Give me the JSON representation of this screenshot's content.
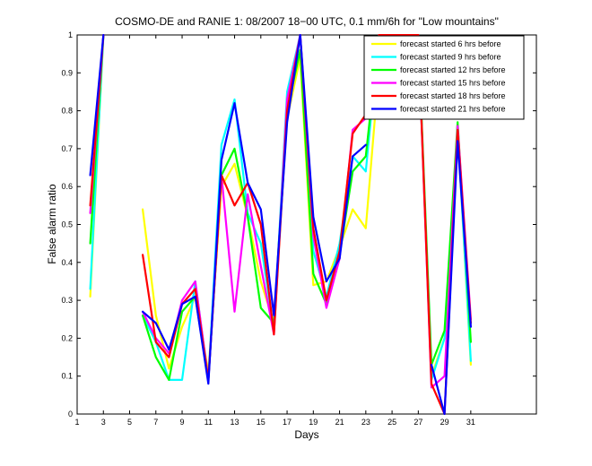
{
  "chart_data": {
    "type": "line",
    "title": "COSMO-DE and RANIE 1: 08/2007 18−00 UTC, 0.1 mm/6h for \"Low mountains\"",
    "xlabel": "Days",
    "ylabel": "False alarm ratio",
    "xlim": [
      1,
      36
    ],
    "ylim": [
      0,
      1
    ],
    "xticks": [
      1,
      3,
      5,
      7,
      9,
      11,
      13,
      15,
      17,
      19,
      21,
      23,
      25,
      27,
      29,
      31
    ],
    "yticks": [
      0,
      0.1,
      0.2,
      0.3,
      0.4,
      0.5,
      0.6,
      0.7,
      0.8,
      0.9,
      1
    ],
    "ytick_labels": [
      "0",
      "0.1",
      "0.2",
      "0.3",
      "0.4",
      "0.5",
      "0.6",
      "0.7",
      "0.8",
      "0.9",
      "1"
    ],
    "grid": false,
    "legend_position": "top-right",
    "x": [
      1,
      2,
      3,
      4,
      5,
      6,
      7,
      8,
      9,
      10,
      11,
      12,
      13,
      14,
      15,
      16,
      17,
      18,
      19,
      20,
      21,
      22,
      23,
      24,
      25,
      26,
      27,
      28,
      29,
      30,
      31
    ],
    "series": [
      {
        "name": "forecast started 6 hrs before",
        "color": "#ffff00",
        "values": [
          null,
          0.31,
          1.0,
          null,
          null,
          0.54,
          0.26,
          0.12,
          0.23,
          0.31,
          0.11,
          0.6,
          0.66,
          0.52,
          0.35,
          0.24,
          0.78,
          0.94,
          0.34,
          0.35,
          0.44,
          0.54,
          0.49,
          0.91,
          1.0,
          1.0,
          1.0,
          0.1,
          0.2,
          0.75,
          0.13
        ]
      },
      {
        "name": "forecast started 9 hrs before",
        "color": "#00ffff",
        "values": [
          null,
          0.33,
          1.0,
          null,
          null,
          0.26,
          0.19,
          0.09,
          0.09,
          0.35,
          0.09,
          0.71,
          0.83,
          0.53,
          0.45,
          0.22,
          0.85,
          1.0,
          0.43,
          0.31,
          0.45,
          0.68,
          0.64,
          1.0,
          1.0,
          1.0,
          1.0,
          0.09,
          0.2,
          0.75,
          0.14
        ]
      },
      {
        "name": "forecast started 12 hrs before",
        "color": "#00ff00",
        "values": [
          null,
          0.45,
          1.0,
          null,
          null,
          0.26,
          0.15,
          0.09,
          0.27,
          0.31,
          0.09,
          0.63,
          0.7,
          0.52,
          0.28,
          0.24,
          0.8,
          0.96,
          0.37,
          0.29,
          0.42,
          0.64,
          0.68,
          1.0,
          1.0,
          1.0,
          1.0,
          0.13,
          0.22,
          0.77,
          0.19
        ]
      },
      {
        "name": "forecast started 15 hrs before",
        "color": "#ff00ff",
        "values": [
          null,
          0.53,
          1.0,
          null,
          null,
          0.27,
          0.2,
          0.16,
          0.3,
          0.35,
          0.09,
          0.63,
          0.27,
          0.58,
          0.39,
          0.21,
          0.83,
          1.0,
          0.47,
          0.28,
          0.41,
          0.75,
          0.78,
          1.0,
          1.0,
          1.0,
          1.0,
          0.07,
          0.1,
          0.76,
          0.25
        ]
      },
      {
        "name": "forecast started 18 hrs before",
        "color": "#ff0000",
        "values": [
          null,
          0.55,
          1.0,
          null,
          null,
          0.42,
          0.19,
          0.15,
          0.29,
          0.33,
          0.09,
          0.63,
          0.55,
          0.61,
          0.5,
          0.21,
          0.8,
          1.0,
          0.49,
          0.3,
          0.43,
          0.74,
          0.79,
          1.0,
          1.0,
          1.0,
          1.0,
          0.08,
          0.0,
          0.75,
          0.24
        ]
      },
      {
        "name": "forecast started 21 hrs before",
        "color": "#0000ff",
        "values": [
          null,
          0.63,
          1.0,
          null,
          null,
          0.27,
          0.24,
          0.17,
          0.29,
          0.31,
          0.08,
          0.67,
          0.82,
          0.61,
          0.54,
          0.26,
          0.77,
          1.0,
          0.52,
          0.35,
          0.41,
          0.68,
          0.71,
          null,
          null,
          null,
          null,
          0.13,
          0.0,
          0.72,
          0.23
        ]
      }
    ]
  }
}
